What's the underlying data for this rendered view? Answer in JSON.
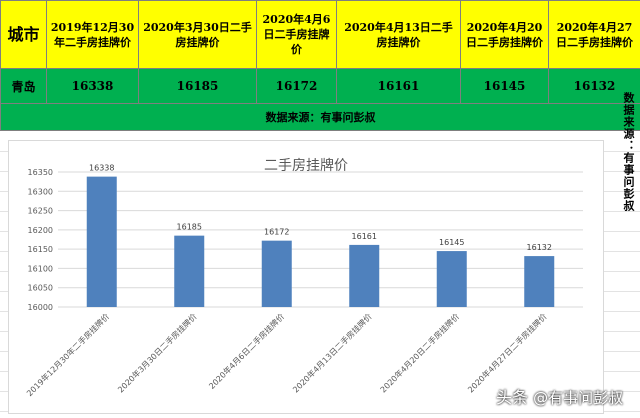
{
  "table": {
    "headers": [
      "城市",
      "2019年12月30年二手房挂牌价",
      "2020年3月30日二手房挂牌价",
      "2020年4月6日二手房挂牌价",
      "2020年4月13日二手房挂牌价",
      "2020年4月20日二手房挂牌价",
      "2020年4月27日二手房挂牌价"
    ],
    "row": [
      "青岛",
      "16338",
      "16185",
      "16172",
      "16161",
      "16145",
      "16132"
    ],
    "source": "数据来源：有事问彭叔"
  },
  "side_note": "数据来源：有事问彭叔",
  "watermark": {
    "brand": "头条",
    "handle": "@有事问彭叔"
  },
  "colors": {
    "header_bg": "#ffff00",
    "row_bg": "#00b050",
    "bar": "#4f81bd"
  },
  "chart_data": {
    "type": "bar",
    "title": "二手房挂牌价",
    "xlabel": "",
    "ylabel": "",
    "categories": [
      "2019年12月30年二手房挂牌价",
      "2020年3月30日二手房挂牌价",
      "2020年4月6日二手房挂牌价",
      "2020年4月13日二手房挂牌价",
      "2020年4月20日二手房挂牌价",
      "2020年4月27日二手房挂牌价"
    ],
    "values": [
      16338,
      16185,
      16172,
      16161,
      16145,
      16132
    ],
    "ylim": [
      16000,
      16350
    ],
    "yticks": [
      16000,
      16050,
      16100,
      16150,
      16200,
      16250,
      16300,
      16350
    ],
    "grid": true,
    "data_labels": true
  }
}
